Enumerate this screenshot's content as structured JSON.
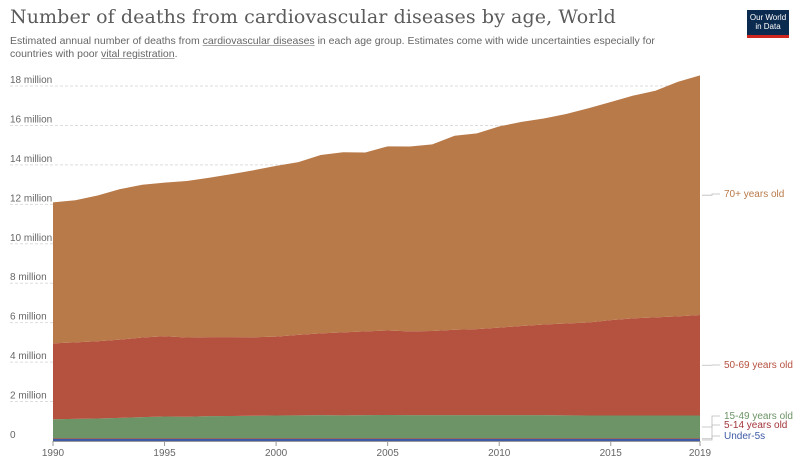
{
  "header": {
    "title": "Number of deaths from cardiovascular diseases by age, World",
    "subtitle_pre": "Estimated annual number of deaths from ",
    "subtitle_link": "cardiovascular diseases",
    "subtitle_mid": " in each age group. Estimates come with wide uncertainties especially for countries with poor ",
    "subtitle_link2": "vital registration",
    "subtitle_post": ".",
    "logo_line1": "Our World",
    "logo_line2": "in Data"
  },
  "colors": {
    "under5": "#3e5aa6",
    "age5_14": "#a2353b",
    "age15_49": "#6c9466",
    "age50_69": "#b5513f",
    "age70plus": "#b97a49",
    "grid": "#dddddd"
  },
  "chart_data": {
    "type": "area",
    "stacked": true,
    "title": "Number of deaths from cardiovascular diseases by age, World",
    "ylim": [
      0,
      18000000
    ],
    "yticks": [
      0,
      2000000,
      4000000,
      6000000,
      8000000,
      10000000,
      12000000,
      14000000,
      16000000,
      18000000
    ],
    "ytick_labels": [
      "0",
      "2 million",
      "4 million",
      "6 million",
      "8 million",
      "10 million",
      "12 million",
      "14 million",
      "16 million",
      "18 million"
    ],
    "xticks": [
      1990,
      1995,
      2000,
      2005,
      2010,
      2015,
      2019
    ],
    "x": [
      1990,
      1991,
      1992,
      1993,
      1994,
      1995,
      1996,
      1997,
      1998,
      1999,
      2000,
      2001,
      2002,
      2003,
      2004,
      2005,
      2006,
      2007,
      2008,
      2009,
      2010,
      2011,
      2012,
      2013,
      2014,
      2015,
      2016,
      2017,
      2018,
      2019
    ],
    "series": [
      {
        "name": "Under-5s",
        "label": "Under-5s",
        "values": [
          100000,
          100000,
          100000,
          100000,
          100000,
          100000,
          100000,
          100000,
          100000,
          100000,
          100000,
          100000,
          100000,
          100000,
          100000,
          100000,
          100000,
          100000,
          100000,
          100000,
          100000,
          100000,
          100000,
          100000,
          100000,
          100000,
          100000,
          100000,
          100000,
          100000
        ]
      },
      {
        "name": "5-14 years old",
        "label": "5-14 years old",
        "values": [
          30000,
          30000,
          30000,
          30000,
          30000,
          30000,
          30000,
          30000,
          30000,
          30000,
          30000,
          30000,
          30000,
          30000,
          30000,
          30000,
          30000,
          30000,
          30000,
          30000,
          30000,
          30000,
          30000,
          30000,
          30000,
          30000,
          30000,
          30000,
          30000,
          30000
        ]
      },
      {
        "name": "15-49 years old",
        "label": "15-49 years old",
        "values": [
          970000,
          990000,
          1010000,
          1040000,
          1080000,
          1110000,
          1100000,
          1130000,
          1140000,
          1150000,
          1160000,
          1170000,
          1180000,
          1170000,
          1180000,
          1190000,
          1180000,
          1180000,
          1180000,
          1180000,
          1180000,
          1180000,
          1180000,
          1170000,
          1160000,
          1160000,
          1160000,
          1160000,
          1160000,
          1160000
        ]
      },
      {
        "name": "50-69 years old",
        "label": "50-69 years old",
        "values": [
          3850000,
          3880000,
          3920000,
          3970000,
          4040000,
          4070000,
          4020000,
          4010000,
          4000000,
          3980000,
          4000000,
          4080000,
          4150000,
          4210000,
          4250000,
          4280000,
          4250000,
          4270000,
          4330000,
          4360000,
          4440000,
          4520000,
          4600000,
          4660000,
          4720000,
          4840000,
          4930000,
          4980000,
          5030000,
          5100000
        ]
      },
      {
        "name": "70+ years old",
        "label": "70+ years old",
        "values": [
          7150000,
          7210000,
          7390000,
          7630000,
          7740000,
          7790000,
          7930000,
          8080000,
          8260000,
          8470000,
          8660000,
          8760000,
          9040000,
          9130000,
          9070000,
          9340000,
          9370000,
          9460000,
          9840000,
          9930000,
          10200000,
          10350000,
          10440000,
          10620000,
          10860000,
          11060000,
          11290000,
          11490000,
          11890000,
          12150000
        ]
      }
    ]
  }
}
